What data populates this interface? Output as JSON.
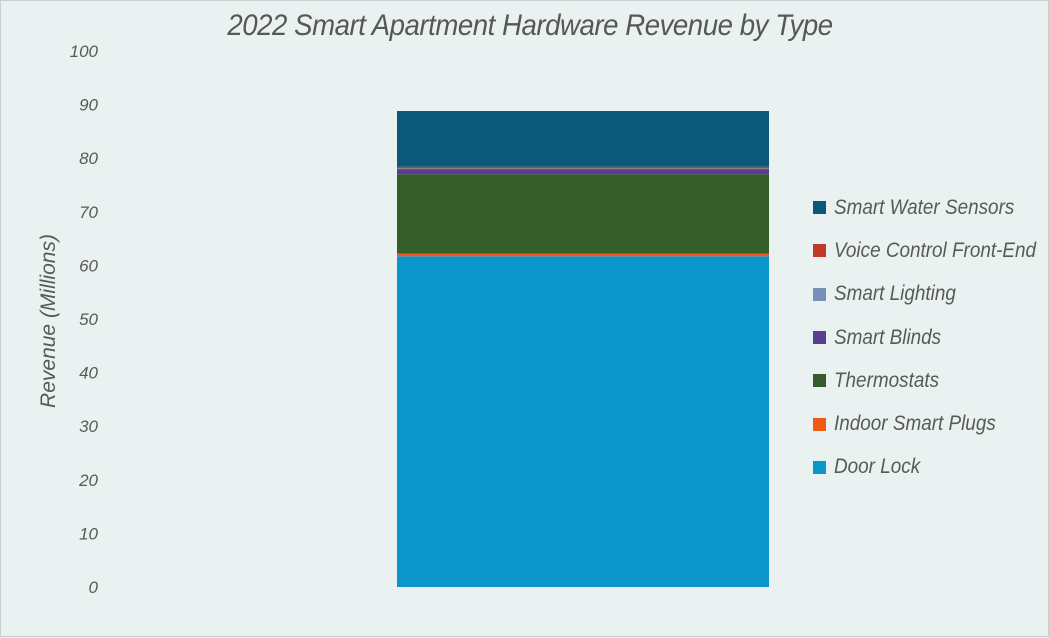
{
  "chart_data": {
    "type": "bar",
    "stacked": true,
    "title": "2022 Smart Apartment Hardware Revenue by Type",
    "xlabel": "",
    "ylabel": "Revenue (Millions)",
    "ylim": [
      0,
      100
    ],
    "yticks": [
      "0",
      "10",
      "20",
      "30",
      "40",
      "50",
      "60",
      "70",
      "80",
      "90",
      "100"
    ],
    "categories": [
      ""
    ],
    "grid": false,
    "legend_position": "right",
    "series": [
      {
        "name": "Door Lock",
        "values": [
          61.7
        ],
        "color": "#0b96cc"
      },
      {
        "name": "Indoor Smart Plugs",
        "values": [
          0.5
        ],
        "color": "#f05a14"
      },
      {
        "name": "Thermostats",
        "values": [
          14.8
        ],
        "color": "#345d2a"
      },
      {
        "name": "Smart Blinds",
        "values": [
          1.0
        ],
        "color": "#5a3f91"
      },
      {
        "name": "Smart Lighting",
        "values": [
          0.1
        ],
        "color": "#7690b8"
      },
      {
        "name": "Voice Control Front-End",
        "values": [
          0.3
        ],
        "color": "#c0392b"
      },
      {
        "name": "Smart Water Sensors",
        "values": [
          10.4
        ],
        "color": "#0b5878"
      }
    ]
  }
}
